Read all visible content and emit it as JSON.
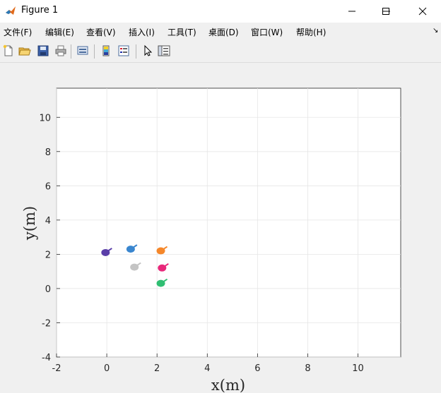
{
  "window": {
    "title": "Figure 1",
    "icon": "matlab-logo-icon"
  },
  "controls": {
    "minimize": "minimize-icon",
    "maximize": "maximize-icon",
    "close": "close-icon"
  },
  "menubar": {
    "items": [
      {
        "label": "文件(F)"
      },
      {
        "label": "编辑(E)"
      },
      {
        "label": "查看(V)"
      },
      {
        "label": "插入(I)"
      },
      {
        "label": "工具(T)"
      },
      {
        "label": "桌面(D)"
      },
      {
        "label": "窗口(W)"
      },
      {
        "label": "帮助(H)"
      }
    ],
    "dock_arrow": "↘"
  },
  "toolbar": {
    "icons": [
      "new-figure-icon",
      "open-file-icon",
      "save-icon",
      "print-icon",
      "link-plot-icon",
      "insert-colorbar-icon",
      "insert-legend-icon",
      "edit-plot-pointer-icon",
      "property-inspector-icon"
    ]
  },
  "colors": {
    "purple": "#5a3ea8",
    "blue": "#3a86cf",
    "orange": "#f5872a",
    "gray": "#c4c4c4",
    "magenta": "#e8287a",
    "green": "#2fbe72"
  },
  "chart_data": {
    "type": "scatter",
    "title": "",
    "xlabel": "x(m)",
    "ylabel": "y(m)",
    "xlim": [
      -2,
      11.7
    ],
    "ylim": [
      -4,
      11.7
    ],
    "xticks": [
      -2,
      0,
      2,
      4,
      6,
      8,
      10
    ],
    "yticks": [
      -4,
      -2,
      0,
      2,
      4,
      6,
      8,
      10
    ],
    "grid": true,
    "legend": "none",
    "points": [
      {
        "x": -0.05,
        "y": 2.1,
        "color": "purple"
      },
      {
        "x": 0.95,
        "y": 2.3,
        "color": "blue"
      },
      {
        "x": 2.15,
        "y": 2.2,
        "color": "orange"
      },
      {
        "x": 1.1,
        "y": 1.25,
        "color": "gray"
      },
      {
        "x": 2.2,
        "y": 1.2,
        "color": "magenta"
      },
      {
        "x": 2.15,
        "y": 0.3,
        "color": "green"
      }
    ]
  }
}
